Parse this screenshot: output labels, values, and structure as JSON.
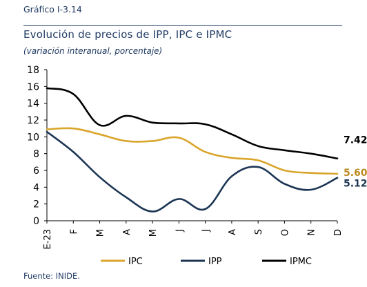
{
  "header": {
    "chart_number": "Gráfico I-3.14",
    "title": "Evolución de precios de IPP, IPC e IPMC",
    "subtitle": "(variación interanual, porcentaje)"
  },
  "footer": {
    "source": "Fuente: INIDE."
  },
  "chart_data": {
    "type": "line",
    "categories": [
      "E-23",
      "F",
      "M",
      "A",
      "M",
      "J",
      "J",
      "A",
      "S",
      "O",
      "N",
      "D"
    ],
    "ylim": [
      0,
      18
    ],
    "yticks": [
      "0",
      "2",
      "4",
      "6",
      "8",
      "10",
      "12",
      "14",
      "16",
      "18"
    ],
    "grid": false,
    "legend_position": "bottom",
    "series": [
      {
        "name": "IPC",
        "color": "#d9a52a",
        "values": [
          10.9,
          11.0,
          10.3,
          9.5,
          9.5,
          9.9,
          8.2,
          7.5,
          7.2,
          6.0,
          5.7,
          5.6
        ],
        "end_label": "5.60"
      },
      {
        "name": "IPP",
        "color": "#1b3553",
        "values": [
          10.6,
          8.2,
          5.2,
          2.8,
          1.1,
          2.6,
          1.4,
          5.3,
          6.4,
          4.4,
          3.7,
          5.12
        ],
        "end_label": "5.12"
      },
      {
        "name": "IPMC",
        "color": "#000000",
        "values": [
          15.8,
          15.1,
          11.4,
          12.5,
          11.7,
          11.6,
          11.5,
          10.3,
          8.9,
          8.4,
          8.0,
          7.42
        ],
        "end_label": "7.42"
      }
    ]
  }
}
